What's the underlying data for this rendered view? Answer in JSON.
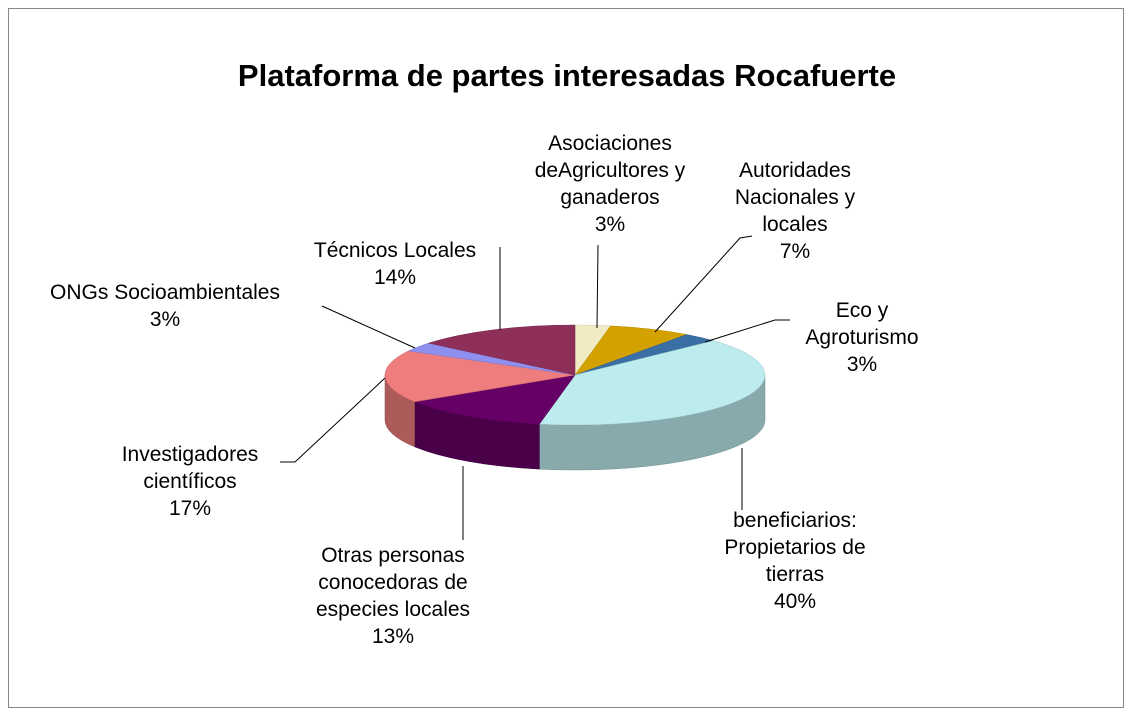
{
  "chart_data": {
    "type": "pie3d",
    "title": "Plataforma de partes interesadas Rocafuerte",
    "categories": [
      "Asociaciones\ndeAgricultores y\nganaderos",
      "Autoridades\nNacionales y\nlocales",
      "Eco y\nAgroturismo",
      "beneficiarios:\nPropietarios de\ntierras",
      "Otras personas\nconocedoras de\nespecies locales",
      "Investigadores\ncientíficos",
      "ONGs Socioambientales",
      "Técnicos Locales"
    ],
    "values": [
      3,
      7,
      3,
      40,
      13,
      17,
      3,
      14
    ],
    "value_labels": [
      "3%",
      "7%",
      "3%",
      "40%",
      "13%",
      "17%",
      "3%",
      "14%"
    ],
    "colors": [
      "#f1ebc3",
      "#d4a200",
      "#3a6fa6",
      "#bdecef",
      "#660066",
      "#f07d7d",
      "#8f8fef",
      "#8e2f5a"
    ]
  }
}
